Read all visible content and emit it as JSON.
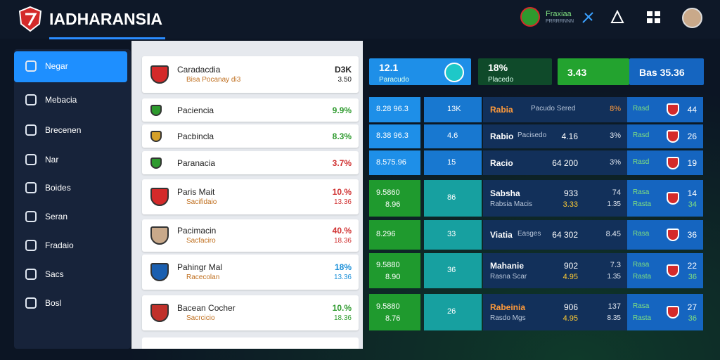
{
  "header": {
    "brand": "IADHARANSIA",
    "badge_title": "Fraxiaa",
    "badge_sub": "PRRRRNNN"
  },
  "sidebar": {
    "active": 0,
    "items": [
      "Negar",
      "Mebacia",
      "Brecenen",
      "Nar",
      "Boides",
      "Seran",
      "Fradaio",
      "Sacs",
      "Bosl"
    ]
  },
  "list": {
    "rows": [
      {
        "title": "Caradacdia",
        "sub": "Bisa Pocanay di3",
        "value": "D3K",
        "value2": "3.50",
        "color": "#222222"
      },
      {
        "title": "Paciencia",
        "value": "9.9%",
        "color": "#2e9a2e"
      },
      {
        "title": "Pacbincla",
        "value": "8.3%",
        "color": "#2e9a2e"
      },
      {
        "title": "Paranacia",
        "value": "3.7%",
        "color": "#d03030"
      },
      {
        "title": "Paris Mait",
        "sub": "Sacifidaio",
        "value": "10.%",
        "value2": "13.36",
        "color": "#d03030"
      },
      {
        "title": "Pacimacin",
        "sub": "Sacfaciro",
        "value": "40.%",
        "value2": "18.36",
        "color": "#d03030"
      },
      {
        "title": "Pahingr Mal",
        "sub": "Racecolan",
        "value": "18%",
        "value2": "13.36",
        "color": "#1a8fd8"
      },
      {
        "title": "Bacean Cocher",
        "sub": "Sacrcicio",
        "value": "10.%",
        "value2": "18.36",
        "color": "#2e9a2e"
      }
    ]
  },
  "cards": [
    {
      "value": "12.1",
      "label": "Paracudo",
      "color": "#1e8fe8"
    },
    {
      "value": "18%",
      "label": "Placedo",
      "color": "#0f4a2a"
    },
    {
      "value": "3.43",
      "color": "#23a32f"
    },
    {
      "value": "Bas 35.36",
      "color": "#1565c0"
    }
  ],
  "board": {
    "rows": [
      {
        "c1": "8.28 96.3",
        "c2": "13K",
        "name": "Rabia",
        "label": "Pacudo Sered",
        "pct": "8%",
        "tag": "Rasd",
        "num": "44",
        "tone": "blue"
      },
      {
        "c1": "8.38 96.3",
        "c2": "4.6",
        "name": "Rabio",
        "label": "Pacisedo",
        "mid": "4.16",
        "pct": "3%",
        "tag": "Rasd",
        "num": "26",
        "tone": "blue"
      },
      {
        "c1": "8.575.96",
        "c2": "15",
        "name": "Racio",
        "mid": "64 200",
        "pct": "3%",
        "tag": "Rasd",
        "num": "19",
        "tone": "blue"
      },
      {
        "c1": "9.5860",
        "c1b": "8.96",
        "c2": "86",
        "name": "Sabsha",
        "label": "Rabsia Macis",
        "mid": "933",
        "mid2": "3.33",
        "pct": "74",
        "pct2": "1.35",
        "tag": "Rasa",
        "tag2": "Rasta",
        "num": "14",
        "num2": "34",
        "tone": "green"
      },
      {
        "c1": "8.296",
        "c2": "33",
        "name": "Viatia",
        "label": "Easges",
        "mid": "64 302",
        "pct": "8.45",
        "tag": "Rasa",
        "num": "36",
        "tone": "green"
      },
      {
        "c1": "9.5880",
        "c1b": "8.90",
        "c2": "36",
        "name": "Mahanie",
        "label": "Rasna Scar",
        "mid": "902",
        "mid2": "4.95",
        "pct": "7.3",
        "pct2": "1.35",
        "tag": "Rasa",
        "tag2": "Rasta",
        "num": "22",
        "num2": "36",
        "tone": "green"
      },
      {
        "c1": "9.5880",
        "c1b": "8.76",
        "c2": "26",
        "name": "Rabeinia",
        "label": "Rasdo Mgs",
        "mid": "906",
        "mid2": "4.95",
        "pct": "137",
        "pct2": "8.35",
        "tag": "Rasa",
        "tag2": "Rasta",
        "num": "27",
        "num2": "36",
        "tone": "green"
      }
    ]
  }
}
